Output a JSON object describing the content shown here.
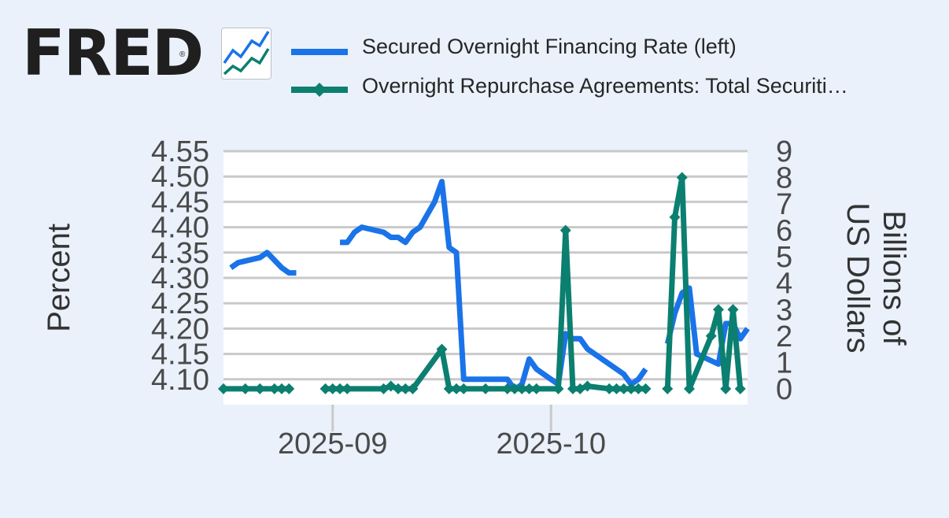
{
  "header": {
    "logo_text": "FRED",
    "logo_mark": "®",
    "logo_icon": "line-chart-icon"
  },
  "colors": {
    "background": "#eaf1fb",
    "plot_background": "#ffffff",
    "grid": "#cccccc",
    "series_sofr": "#1a73e8",
    "series_repo": "#0b7f70"
  },
  "chart_data": {
    "type": "line",
    "title": "",
    "xlabel": "",
    "x_ticks": [
      "2025-09",
      "2025-10"
    ],
    "left_axis": {
      "label": "Percent",
      "ylim": [
        4.05,
        4.55
      ],
      "ticks": [
        "4.10",
        "4.15",
        "4.20",
        "4.25",
        "4.30",
        "4.35",
        "4.40",
        "4.45",
        "4.50",
        "4.55"
      ]
    },
    "right_axis": {
      "label": "Billions of US Dollars",
      "ylim": [
        -0.6,
        9
      ],
      "ticks": [
        "0",
        "1",
        "2",
        "3",
        "4",
        "5",
        "6",
        "7",
        "8",
        "9"
      ]
    },
    "grid": true,
    "legend_position": "top",
    "series": [
      {
        "name": "Secured Overnight Financing Rate (left)",
        "axis": "left",
        "marker": "none",
        "color": "#1a73e8",
        "points": [
          [
            "2025-08-18",
            4.32
          ],
          [
            "2025-08-19",
            4.33
          ],
          [
            "2025-08-22",
            4.34
          ],
          [
            "2025-08-23",
            4.35
          ],
          [
            "2025-08-25",
            4.32
          ],
          [
            "2025-08-26",
            4.31
          ],
          [
            "2025-08-27",
            4.31
          ],
          null,
          [
            "2025-09-02",
            4.37
          ],
          [
            "2025-09-03",
            4.37
          ],
          [
            "2025-09-04",
            4.39
          ],
          [
            "2025-09-05",
            4.4
          ],
          [
            "2025-09-08",
            4.39
          ],
          [
            "2025-09-09",
            4.38
          ],
          [
            "2025-09-10",
            4.38
          ],
          [
            "2025-09-11",
            4.37
          ],
          [
            "2025-09-12",
            4.39
          ],
          [
            "2025-09-13",
            4.4
          ],
          [
            "2025-09-15",
            4.45
          ],
          [
            "2025-09-16",
            4.49
          ],
          [
            "2025-09-17",
            4.36
          ],
          [
            "2025-09-18",
            4.35
          ],
          [
            "2025-09-19",
            4.1
          ],
          [
            "2025-09-22",
            4.1
          ],
          [
            "2025-09-25",
            4.1
          ],
          [
            "2025-09-26",
            4.08
          ],
          [
            "2025-09-27",
            4.09
          ],
          [
            "2025-09-28",
            4.14
          ],
          [
            "2025-09-29",
            4.12
          ],
          [
            "2025-09-30",
            4.11
          ],
          [
            "2025-10-02",
            4.09
          ],
          [
            "2025-10-03",
            4.19
          ],
          [
            "2025-10-04",
            4.18
          ],
          [
            "2025-10-05",
            4.18
          ],
          [
            "2025-10-06",
            4.16
          ],
          [
            "2025-10-09",
            4.13
          ],
          [
            "2025-10-10",
            4.12
          ],
          [
            "2025-10-11",
            4.11
          ],
          [
            "2025-10-12",
            4.09
          ],
          [
            "2025-10-13",
            4.1
          ],
          [
            "2025-10-14",
            4.12
          ],
          null,
          [
            "2025-10-17",
            4.17
          ],
          [
            "2025-10-18",
            4.23
          ],
          [
            "2025-10-19",
            4.27
          ],
          [
            "2025-10-20",
            4.28
          ],
          [
            "2025-10-21",
            4.15
          ],
          [
            "2025-10-24",
            4.13
          ],
          [
            "2025-10-25",
            4.21
          ],
          [
            "2025-10-26",
            4.21
          ],
          [
            "2025-10-27",
            4.18
          ],
          [
            "2025-10-28",
            4.2
          ]
        ]
      },
      {
        "name": "Overnight Repurchase Agreements: Total Securiti…",
        "axis": "right",
        "marker": "diamond",
        "color": "#0b7f70",
        "points": [
          [
            "2025-08-17",
            0
          ],
          [
            "2025-08-20",
            0
          ],
          [
            "2025-08-22",
            0
          ],
          [
            "2025-08-24",
            0
          ],
          [
            "2025-08-25",
            0
          ],
          [
            "2025-08-26",
            0
          ],
          null,
          [
            "2025-08-31",
            0
          ],
          [
            "2025-09-01",
            0
          ],
          [
            "2025-09-02",
            0
          ],
          [
            "2025-09-03",
            0
          ],
          [
            "2025-09-08",
            0
          ],
          [
            "2025-09-09",
            0.1
          ],
          [
            "2025-09-10",
            0
          ],
          [
            "2025-09-11",
            0
          ],
          [
            "2025-09-12",
            0
          ],
          [
            "2025-09-16",
            1.5
          ],
          [
            "2025-09-17",
            0
          ],
          [
            "2025-09-18",
            0
          ],
          [
            "2025-09-19",
            0
          ],
          [
            "2025-09-22",
            0
          ],
          [
            "2025-09-25",
            0
          ],
          [
            "2025-09-26",
            0
          ],
          [
            "2025-09-27",
            0
          ],
          [
            "2025-09-28",
            0
          ],
          [
            "2025-09-29",
            0
          ],
          [
            "2025-10-02",
            0
          ],
          [
            "2025-10-03",
            6.0
          ],
          [
            "2025-10-04",
            0
          ],
          [
            "2025-10-05",
            0
          ],
          [
            "2025-10-06",
            0.1
          ],
          [
            "2025-10-09",
            0
          ],
          [
            "2025-10-10",
            0
          ],
          [
            "2025-10-11",
            0
          ],
          [
            "2025-10-12",
            0
          ],
          [
            "2025-10-13",
            0
          ],
          [
            "2025-10-14",
            0
          ],
          null,
          [
            "2025-10-17",
            0
          ],
          [
            "2025-10-18",
            6.5
          ],
          [
            "2025-10-19",
            8.0
          ],
          [
            "2025-10-20",
            0
          ],
          [
            "2025-10-23",
            2.0
          ],
          [
            "2025-10-24",
            3.0
          ],
          [
            "2025-10-25",
            0
          ],
          [
            "2025-10-26",
            3.0
          ],
          [
            "2025-10-27",
            0
          ]
        ]
      }
    ]
  }
}
